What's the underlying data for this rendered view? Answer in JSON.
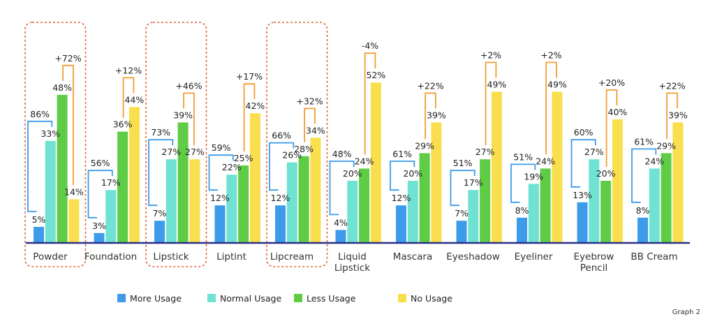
{
  "chart_data": {
    "type": "bar",
    "categories": [
      [
        "Powder"
      ],
      [
        "Foundation"
      ],
      [
        "Lipstick"
      ],
      [
        "Liptint"
      ],
      [
        "Lipcream"
      ],
      [
        "Liquid",
        "Lipstick"
      ],
      [
        "Mascara"
      ],
      [
        "Eyeshadow"
      ],
      [
        "Eyeliner"
      ],
      [
        "Eyebrow",
        "Pencil"
      ],
      [
        "BB Cream"
      ]
    ],
    "series": [
      {
        "name": "More Usage",
        "color": "#3d9be9",
        "values": [
          5,
          3,
          7,
          12,
          12,
          4,
          12,
          7,
          8,
          13,
          8
        ]
      },
      {
        "name": "Normal Usage",
        "color": "#6fe2d3",
        "values": [
          33,
          17,
          27,
          22,
          26,
          20,
          20,
          17,
          19,
          27,
          24
        ]
      },
      {
        "name": "Less Usage",
        "color": "#5ecd45",
        "values": [
          48,
          36,
          39,
          25,
          28,
          24,
          29,
          27,
          24,
          20,
          29
        ]
      },
      {
        "name": "No Usage",
        "color": "#f9df4d",
        "values": [
          14,
          44,
          27,
          42,
          34,
          52,
          39,
          49,
          49,
          40,
          39
        ]
      }
    ],
    "more_plus_normal_labels": [
      "86%",
      "56%",
      "73%",
      "59%",
      "66%",
      "48%",
      "61%",
      "51%",
      "51%",
      "60%",
      "61%"
    ],
    "less_minus_no_labels": [
      "+72%",
      "+12%",
      "+46%",
      "+17%",
      "+32%",
      "-4%",
      "+22%",
      "+2%",
      "+2%",
      "+20%",
      "+22%"
    ],
    "value_suffix": "%",
    "highlighted_categories": [
      0,
      2,
      4
    ],
    "bracket_colors": {
      "more_normal": "#3d9be9",
      "less_no": "#f39c33",
      "highlight_box": "#e0643a"
    },
    "ylim": [
      0,
      60
    ],
    "grid": false,
    "legend_position": "bottom",
    "note": "Graph 2"
  }
}
